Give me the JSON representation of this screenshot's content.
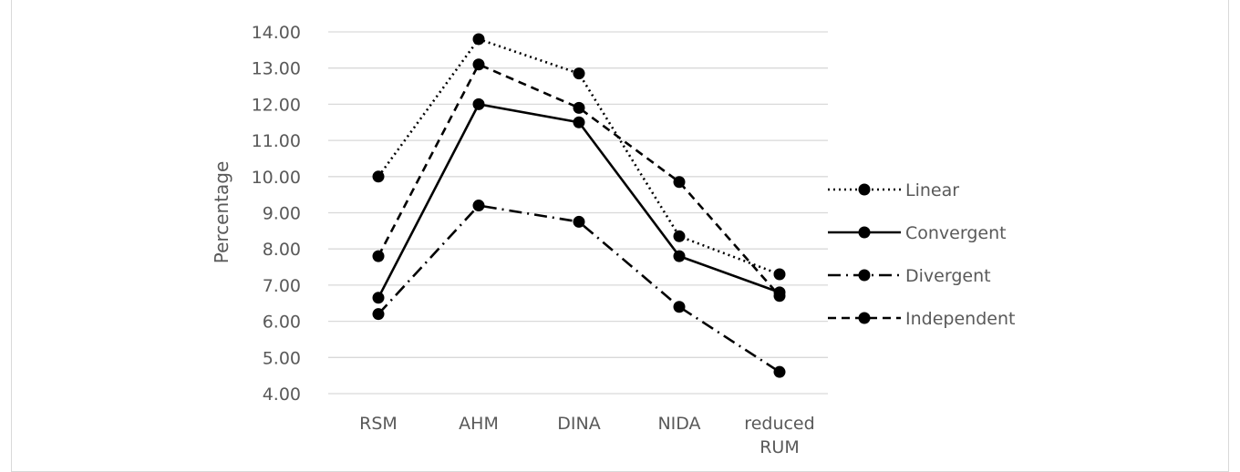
{
  "chart_data": {
    "type": "line",
    "title": "",
    "xlabel": "",
    "ylabel": "Percentage",
    "ylim": [
      4.0,
      14.0
    ],
    "y_tick_step": 1.0,
    "y_tick_labels": [
      "4.00",
      "5.00",
      "6.00",
      "7.00",
      "8.00",
      "9.00",
      "10.00",
      "11.00",
      "12.00",
      "13.00",
      "14.00"
    ],
    "categories": [
      [
        "RSM"
      ],
      [
        "AHM"
      ],
      [
        "DINA"
      ],
      [
        "NIDA"
      ],
      [
        "reduced",
        "RUM"
      ]
    ],
    "grid": "horizontal",
    "legend_position": "right",
    "series": [
      {
        "name": "Linear",
        "style": "dotted",
        "values": [
          10.0,
          13.8,
          12.85,
          8.35,
          7.3
        ]
      },
      {
        "name": "Convergent",
        "style": "solid",
        "values": [
          6.65,
          12.0,
          11.5,
          7.8,
          6.8
        ]
      },
      {
        "name": "Divergent",
        "style": "dashdot",
        "values": [
          6.2,
          9.2,
          8.75,
          6.4,
          4.6
        ]
      },
      {
        "name": "Independent",
        "style": "dashed",
        "values": [
          7.8,
          13.1,
          11.9,
          9.85,
          6.7
        ]
      }
    ],
    "colors": {
      "line": "#000000",
      "grid": "#d9d9d9",
      "text": "#595959"
    }
  }
}
